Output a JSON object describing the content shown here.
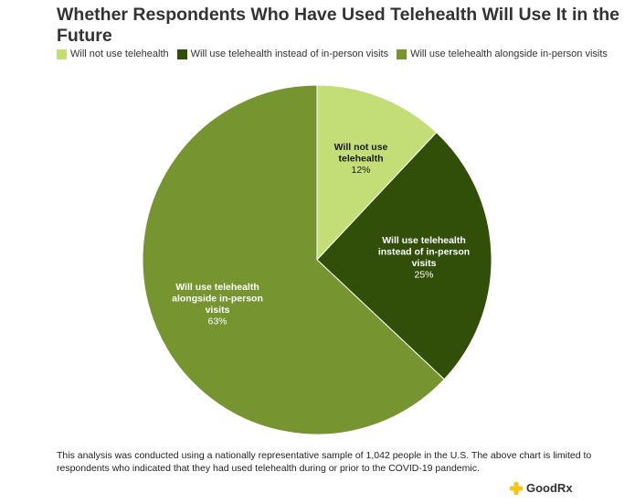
{
  "chart_data": {
    "type": "pie",
    "title": "Whether Respondents Who Have Used Telehealth Will Use It in the Future",
    "categories": [
      "Will not use telehealth",
      "Will use telehealth instead of in-person visits",
      "Will use telehealth alongside in-person visits"
    ],
    "values": [
      12,
      25,
      63
    ],
    "value_labels": [
      "12%",
      "25%",
      "63%"
    ],
    "colors": [
      "#c3dd77",
      "#324f0a",
      "#769430"
    ],
    "label_colors": [
      "#1a1a1a",
      "#ffffff",
      "#ffffff"
    ],
    "legend": "top-left",
    "start": "top, clockwise"
  },
  "footnote": "This analysis was conducted using a nationally representative sample of 1,042 people in the U.S. The above chart is limited to respondents who indicated that they had used telehealth during or prior to the COVID-19 pandemic.",
  "brand": {
    "name": "GoodRx",
    "icon": "goodrx-plus-icon",
    "color": "#f5c518"
  }
}
